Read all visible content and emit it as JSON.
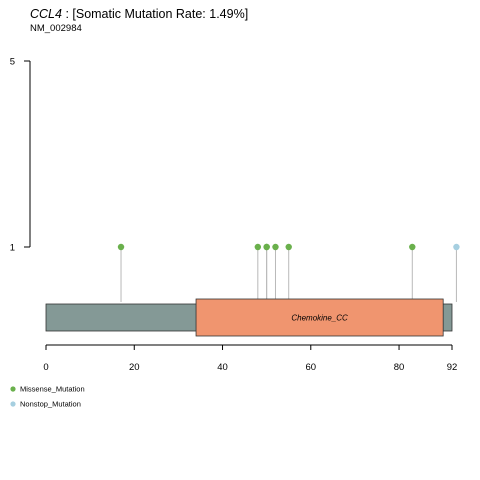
{
  "chart_data": {
    "type": "lollipop",
    "gene": "CCL4",
    "title_suffix": " : [Somatic Mutation Rate: 1.49%]",
    "subtitle": "NM_002984",
    "protein_length": 92,
    "xlim": [
      0,
      92
    ],
    "x_ticks": [
      {
        "value": 0,
        "label": "0"
      },
      {
        "value": 20,
        "label": "20"
      },
      {
        "value": 40,
        "label": "40"
      },
      {
        "value": 60,
        "label": "60"
      },
      {
        "value": 80,
        "label": "80"
      },
      {
        "value": 92,
        "label": "92"
      }
    ],
    "ylim": [
      0,
      5
    ],
    "y_ticks": [
      {
        "value": 1,
        "label": "1"
      },
      {
        "value": 5,
        "label": "5"
      }
    ],
    "backbone_color": "#849996",
    "domains": [
      {
        "name": "Chemokine_CC",
        "start": 34,
        "end": 90,
        "color": "#f0956f"
      }
    ],
    "mutations": [
      {
        "position": 17,
        "count": 1,
        "type": "Missense_Mutation"
      },
      {
        "position": 48,
        "count": 1,
        "type": "Missense_Mutation"
      },
      {
        "position": 50,
        "count": 1,
        "type": "Missense_Mutation"
      },
      {
        "position": 50,
        "count": 1,
        "type": "Missense_Mutation"
      },
      {
        "position": 52,
        "count": 1,
        "type": "Missense_Mutation"
      },
      {
        "position": 55,
        "count": 1,
        "type": "Missense_Mutation"
      },
      {
        "position": 83,
        "count": 1,
        "type": "Missense_Mutation"
      },
      {
        "position": 93,
        "count": 1,
        "type": "Nonstop_Mutation"
      }
    ],
    "legend": [
      {
        "label": "Missense_Mutation",
        "color": "#6ab04c"
      },
      {
        "label": "Nonstop_Mutation",
        "color": "#a6cfe0"
      }
    ]
  }
}
